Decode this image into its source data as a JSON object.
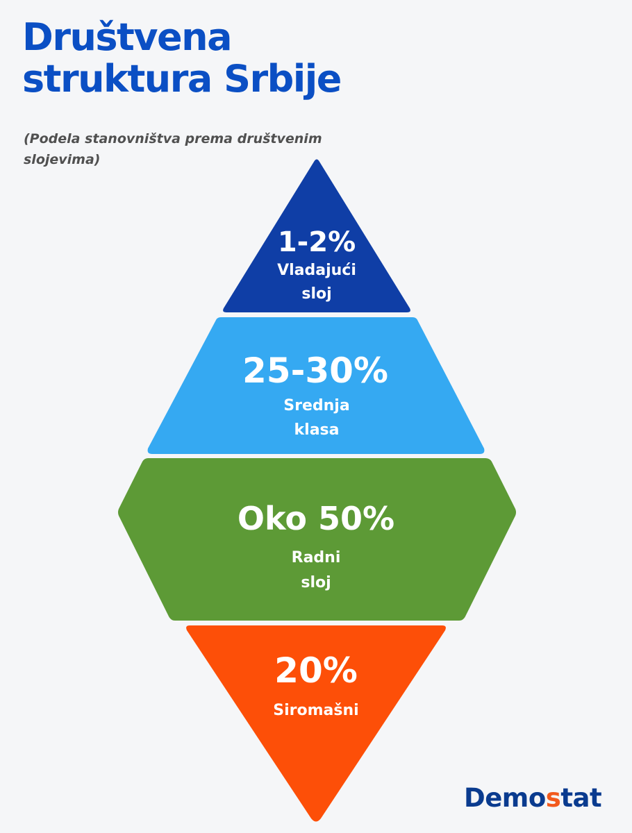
{
  "title_line1": "Društvena",
  "title_line2": "struktura Srbije",
  "subtitle_line1": "(Podela stanovništva prema društvenim",
  "subtitle_line2": "slojevima)",
  "layers": [
    {
      "percent": "1-2%",
      "label_line1": "Vladajući",
      "label_line2": "sloj",
      "color": "#0f3ea6"
    },
    {
      "percent": "25-30%",
      "label_line1": "Srednja",
      "label_line2": "klasa",
      "color": "#35a9f2"
    },
    {
      "percent": "Oko 50%",
      "label_line1": "Radni",
      "label_line2": "sloj",
      "color": "#5d9a36"
    },
    {
      "percent": "20%",
      "label_line1": "Siromašni",
      "color": "#fd4f08"
    }
  ],
  "logo": {
    "text_start": "Demo",
    "text_accent": "s",
    "text_end": "tat",
    "color": "#0a3b8f",
    "accent_color": "#f25a1d"
  }
}
